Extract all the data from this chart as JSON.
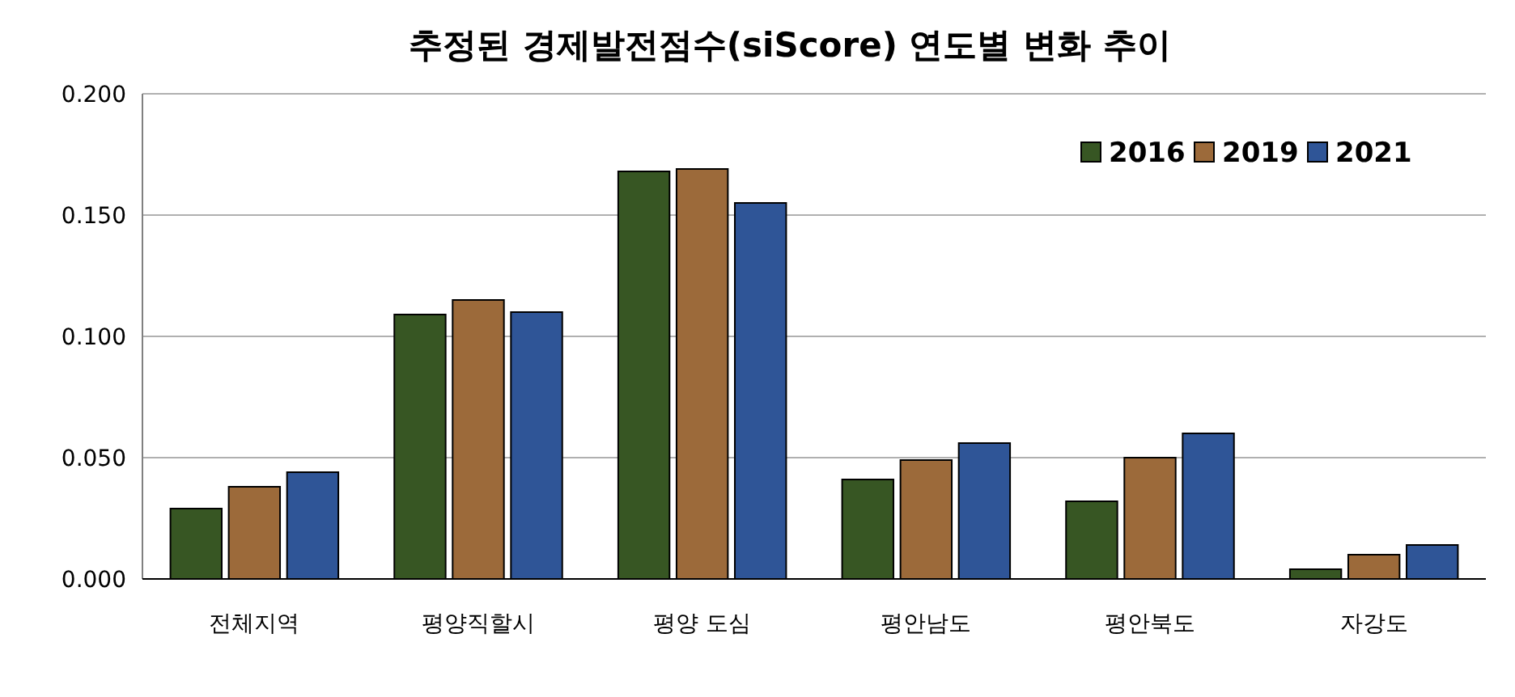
{
  "chart_data": {
    "type": "bar",
    "title": "추정된 경제발전점수(siScore) 연도별 변화 추이",
    "categories": [
      "전체지역",
      "평양직할시",
      "평양 도심",
      "평안남도",
      "평안북도",
      "자강도"
    ],
    "series": [
      {
        "name": "2016",
        "color": "#375623",
        "values": [
          0.029,
          0.109,
          0.168,
          0.041,
          0.032,
          0.004
        ]
      },
      {
        "name": "2019",
        "color": "#9c6a3a",
        "values": [
          0.038,
          0.115,
          0.169,
          0.049,
          0.05,
          0.01
        ]
      },
      {
        "name": "2021",
        "color": "#2f5597",
        "values": [
          0.044,
          0.11,
          0.155,
          0.056,
          0.06,
          0.014
        ]
      }
    ],
    "ylim": [
      0,
      0.2
    ],
    "yticks": [
      {
        "value": 0,
        "label": "0.000"
      },
      {
        "value": 0.05,
        "label": "0.050"
      },
      {
        "value": 0.1,
        "label": "0.100"
      },
      {
        "value": 0.15,
        "label": "0.150"
      },
      {
        "value": 0.2,
        "label": "0.200"
      }
    ],
    "grid": "y",
    "legend": "top right"
  }
}
